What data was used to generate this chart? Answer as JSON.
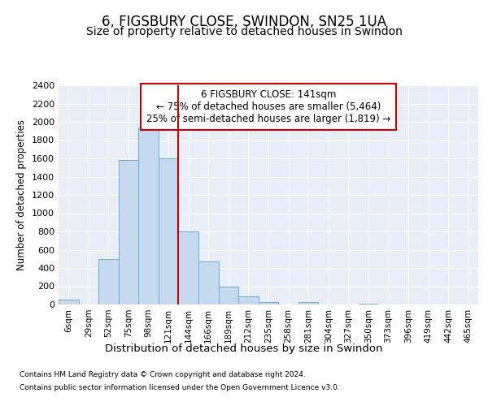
{
  "title1": "6, FIGSBURY CLOSE, SWINDON, SN25 1UA",
  "title2": "Size of property relative to detached houses in Swindon",
  "xlabel": "Distribution of detached houses by size in Swindon",
  "ylabel": "Number of detached properties",
  "footer1": "Contains HM Land Registry data © Crown copyright and database right 2024.",
  "footer2": "Contains public sector information licensed under the Open Government Licence v3.0.",
  "annotation_line1": "6 FIGSBURY CLOSE: 141sqm",
  "annotation_line2": "← 75% of detached houses are smaller (5,464)",
  "annotation_line3": "25% of semi-detached houses are larger (1,819) →",
  "bar_color": "#c5d9ef",
  "bar_edge_color": "#6aaed6",
  "vline_color": "#cc0000",
  "vline_x_index": 6,
  "categories": [
    "6sqm",
    "29sqm",
    "52sqm",
    "75sqm",
    "98sqm",
    "121sqm",
    "144sqm",
    "166sqm",
    "189sqm",
    "212sqm",
    "235sqm",
    "258sqm",
    "281sqm",
    "304sqm",
    "327sqm",
    "350sqm",
    "373sqm",
    "396sqm",
    "419sqm",
    "442sqm",
    "465sqm"
  ],
  "values": [
    50,
    0,
    500,
    1580,
    1940,
    1600,
    800,
    470,
    200,
    90,
    30,
    0,
    30,
    0,
    0,
    10,
    0,
    0,
    0,
    0,
    0
  ],
  "ylim": [
    0,
    2400
  ],
  "yticks": [
    0,
    200,
    400,
    600,
    800,
    1000,
    1200,
    1400,
    1600,
    1800,
    2000,
    2200,
    2400
  ],
  "bg_color": "#e8eef7",
  "fig_bg_color": "#ffffff",
  "grid_color": "#ffffff",
  "title1_fontsize": 12,
  "title2_fontsize": 10,
  "xlabel_fontsize": 9.5,
  "ylabel_fontsize": 8.5,
  "tick_fontsize": 8,
  "xtick_fontsize": 7.5,
  "annotation_fontsize": 8.5,
  "annotation_box_color": "#ffffff",
  "annotation_box_edge": "#cc0000",
  "footer_fontsize": 6.5
}
